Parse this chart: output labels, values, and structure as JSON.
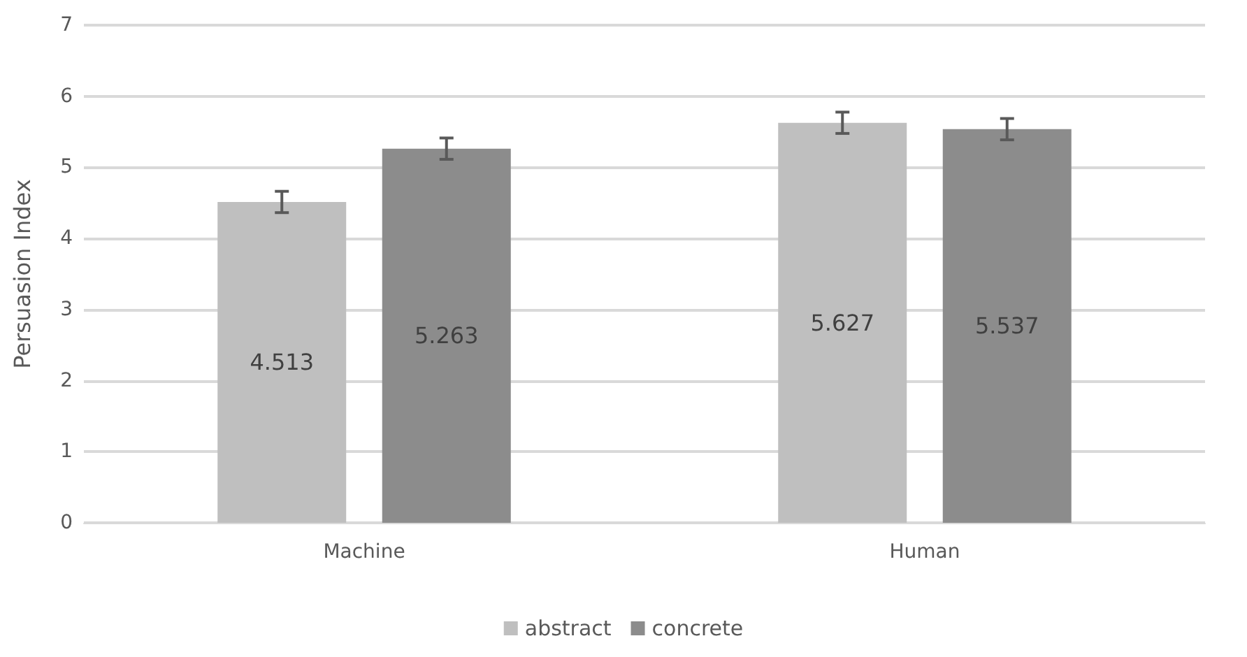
{
  "chart_data": {
    "type": "bar",
    "ylabel": "Persuasion Index",
    "categories": [
      "Machine",
      "Human"
    ],
    "series": [
      {
        "name": "abstract",
        "color": "#bfbfbf",
        "values": [
          4.513,
          5.627
        ],
        "errors": [
          0.15,
          0.15
        ]
      },
      {
        "name": "concrete",
        "color": "#8c8c8c",
        "values": [
          5.263,
          5.537
        ],
        "errors": [
          0.15,
          0.15
        ]
      }
    ],
    "ylim": [
      0,
      7
    ],
    "yticks": [
      0,
      1,
      2,
      3,
      4,
      5,
      6,
      7
    ],
    "grid": "y",
    "legend": "bottom",
    "data_labels": true
  }
}
